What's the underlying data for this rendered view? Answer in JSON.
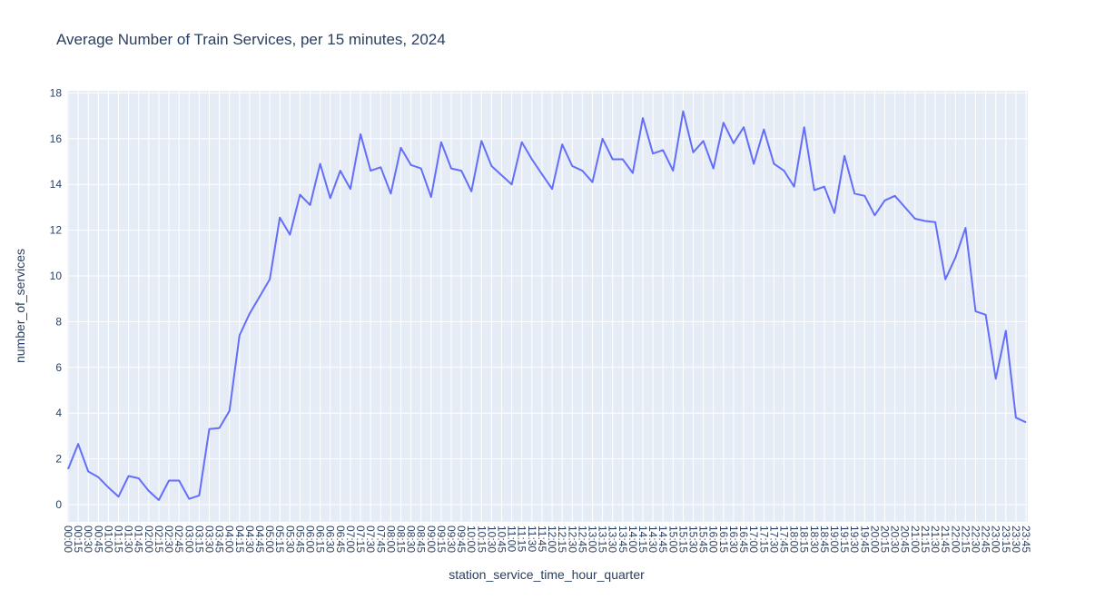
{
  "chart": {
    "title": "Average Number of Train Services, per 15 minutes, 2024",
    "colors": {
      "plot_background": "#e5ecf6",
      "grid": "#ffffff",
      "line": "#636efa",
      "text": "#2a3f5f",
      "paper_background": "#ffffff"
    }
  },
  "chart_data": {
    "type": "line",
    "title": "Average Number of Train Services, per 15 minutes, 2024",
    "xlabel": "station_service_time_hour_quarter",
    "ylabel": "number_of_services",
    "legend": false,
    "grid": true,
    "ylim": [
      0,
      18
    ],
    "ytick_values": [
      0,
      2,
      4,
      6,
      8,
      10,
      12,
      14,
      16,
      18
    ],
    "x": [
      "00:00",
      "00:15",
      "00:30",
      "00:45",
      "01:00",
      "01:15",
      "01:30",
      "01:45",
      "02:00",
      "02:15",
      "02:30",
      "02:45",
      "03:00",
      "03:15",
      "03:30",
      "03:45",
      "04:00",
      "04:15",
      "04:30",
      "04:45",
      "05:00",
      "05:15",
      "05:30",
      "05:45",
      "06:00",
      "06:15",
      "06:30",
      "06:45",
      "07:00",
      "07:15",
      "07:30",
      "07:45",
      "08:00",
      "08:15",
      "08:30",
      "08:45",
      "09:00",
      "09:15",
      "09:30",
      "09:45",
      "10:00",
      "10:15",
      "10:30",
      "10:45",
      "11:00",
      "11:15",
      "11:30",
      "11:45",
      "12:00",
      "12:15",
      "12:30",
      "12:45",
      "13:00",
      "13:15",
      "13:30",
      "13:45",
      "14:00",
      "14:15",
      "14:30",
      "14:45",
      "15:00",
      "15:15",
      "15:30",
      "15:45",
      "16:00",
      "16:15",
      "16:30",
      "16:45",
      "17:00",
      "17:15",
      "17:30",
      "17:45",
      "18:00",
      "18:15",
      "18:30",
      "18:45",
      "19:00",
      "19:15",
      "19:30",
      "19:45",
      "20:00",
      "20:15",
      "20:30",
      "20:45",
      "21:00",
      "21:15",
      "21:30",
      "21:45",
      "22:00",
      "22:15",
      "22:30",
      "22:45",
      "23:00",
      "23:15",
      "23:30",
      "23:45"
    ],
    "values": [
      1.55,
      2.65,
      1.45,
      1.2,
      0.75,
      0.35,
      1.25,
      1.15,
      0.6,
      0.2,
      1.05,
      1.05,
      0.25,
      0.4,
      3.3,
      3.35,
      4.1,
      7.4,
      8.35,
      9.1,
      9.85,
      12.55,
      11.8,
      13.55,
      13.1,
      14.9,
      13.4,
      14.6,
      13.8,
      16.2,
      14.6,
      14.75,
      13.6,
      15.6,
      14.85,
      14.7,
      13.45,
      15.85,
      14.7,
      14.6,
      13.7,
      15.9,
      14.8,
      14.4,
      14.0,
      15.85,
      15.1,
      14.45,
      13.8,
      15.75,
      14.8,
      14.6,
      14.1,
      16.0,
      15.1,
      15.1,
      14.5,
      16.9,
      15.35,
      15.5,
      14.6,
      17.2,
      15.4,
      15.9,
      14.7,
      16.7,
      15.8,
      16.5,
      14.9,
      16.4,
      14.9,
      14.6,
      13.9,
      16.5,
      13.75,
      13.9,
      12.75,
      15.25,
      13.6,
      13.5,
      12.65,
      13.3,
      13.5,
      13.0,
      12.5,
      12.4,
      12.35,
      9.85,
      10.8,
      12.1,
      8.45,
      8.3,
      5.5,
      7.6,
      3.8,
      3.6
    ]
  }
}
